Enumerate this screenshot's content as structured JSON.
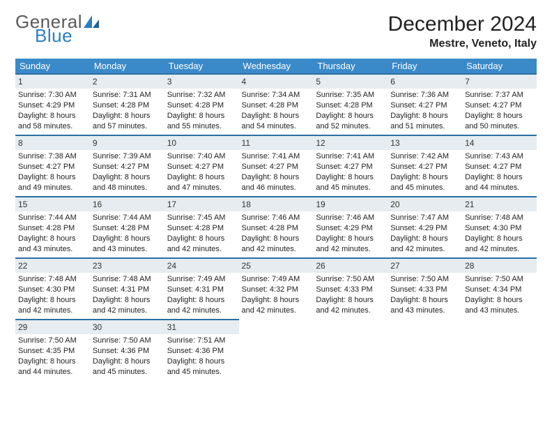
{
  "logo": {
    "text1": "General",
    "text2": "Blue",
    "sail_color": "#2b7fc2",
    "text1_color": "#5a5a5a"
  },
  "title": "December 2024",
  "location": "Mestre, Veneto, Italy",
  "header_bg": "#3a8ac9",
  "header_fg": "#ffffff",
  "daybar_bg": "#e6ecef",
  "daybar_border": "#2b6fa3",
  "font_family": "Arial",
  "title_fontsize": 30,
  "location_fontsize": 16,
  "header_fontsize": 13,
  "body_fontsize": 11,
  "weekdays": [
    "Sunday",
    "Monday",
    "Tuesday",
    "Wednesday",
    "Thursday",
    "Friday",
    "Saturday"
  ],
  "weeks": [
    [
      {
        "n": "1",
        "sr": "Sunrise: 7:30 AM",
        "ss": "Sunset: 4:29 PM",
        "d1": "Daylight: 8 hours",
        "d2": "and 58 minutes."
      },
      {
        "n": "2",
        "sr": "Sunrise: 7:31 AM",
        "ss": "Sunset: 4:28 PM",
        "d1": "Daylight: 8 hours",
        "d2": "and 57 minutes."
      },
      {
        "n": "3",
        "sr": "Sunrise: 7:32 AM",
        "ss": "Sunset: 4:28 PM",
        "d1": "Daylight: 8 hours",
        "d2": "and 55 minutes."
      },
      {
        "n": "4",
        "sr": "Sunrise: 7:34 AM",
        "ss": "Sunset: 4:28 PM",
        "d1": "Daylight: 8 hours",
        "d2": "and 54 minutes."
      },
      {
        "n": "5",
        "sr": "Sunrise: 7:35 AM",
        "ss": "Sunset: 4:28 PM",
        "d1": "Daylight: 8 hours",
        "d2": "and 52 minutes."
      },
      {
        "n": "6",
        "sr": "Sunrise: 7:36 AM",
        "ss": "Sunset: 4:27 PM",
        "d1": "Daylight: 8 hours",
        "d2": "and 51 minutes."
      },
      {
        "n": "7",
        "sr": "Sunrise: 7:37 AM",
        "ss": "Sunset: 4:27 PM",
        "d1": "Daylight: 8 hours",
        "d2": "and 50 minutes."
      }
    ],
    [
      {
        "n": "8",
        "sr": "Sunrise: 7:38 AM",
        "ss": "Sunset: 4:27 PM",
        "d1": "Daylight: 8 hours",
        "d2": "and 49 minutes."
      },
      {
        "n": "9",
        "sr": "Sunrise: 7:39 AM",
        "ss": "Sunset: 4:27 PM",
        "d1": "Daylight: 8 hours",
        "d2": "and 48 minutes."
      },
      {
        "n": "10",
        "sr": "Sunrise: 7:40 AM",
        "ss": "Sunset: 4:27 PM",
        "d1": "Daylight: 8 hours",
        "d2": "and 47 minutes."
      },
      {
        "n": "11",
        "sr": "Sunrise: 7:41 AM",
        "ss": "Sunset: 4:27 PM",
        "d1": "Daylight: 8 hours",
        "d2": "and 46 minutes."
      },
      {
        "n": "12",
        "sr": "Sunrise: 7:41 AM",
        "ss": "Sunset: 4:27 PM",
        "d1": "Daylight: 8 hours",
        "d2": "and 45 minutes."
      },
      {
        "n": "13",
        "sr": "Sunrise: 7:42 AM",
        "ss": "Sunset: 4:27 PM",
        "d1": "Daylight: 8 hours",
        "d2": "and 45 minutes."
      },
      {
        "n": "14",
        "sr": "Sunrise: 7:43 AM",
        "ss": "Sunset: 4:27 PM",
        "d1": "Daylight: 8 hours",
        "d2": "and 44 minutes."
      }
    ],
    [
      {
        "n": "15",
        "sr": "Sunrise: 7:44 AM",
        "ss": "Sunset: 4:28 PM",
        "d1": "Daylight: 8 hours",
        "d2": "and 43 minutes."
      },
      {
        "n": "16",
        "sr": "Sunrise: 7:44 AM",
        "ss": "Sunset: 4:28 PM",
        "d1": "Daylight: 8 hours",
        "d2": "and 43 minutes."
      },
      {
        "n": "17",
        "sr": "Sunrise: 7:45 AM",
        "ss": "Sunset: 4:28 PM",
        "d1": "Daylight: 8 hours",
        "d2": "and 42 minutes."
      },
      {
        "n": "18",
        "sr": "Sunrise: 7:46 AM",
        "ss": "Sunset: 4:28 PM",
        "d1": "Daylight: 8 hours",
        "d2": "and 42 minutes."
      },
      {
        "n": "19",
        "sr": "Sunrise: 7:46 AM",
        "ss": "Sunset: 4:29 PM",
        "d1": "Daylight: 8 hours",
        "d2": "and 42 minutes."
      },
      {
        "n": "20",
        "sr": "Sunrise: 7:47 AM",
        "ss": "Sunset: 4:29 PM",
        "d1": "Daylight: 8 hours",
        "d2": "and 42 minutes."
      },
      {
        "n": "21",
        "sr": "Sunrise: 7:48 AM",
        "ss": "Sunset: 4:30 PM",
        "d1": "Daylight: 8 hours",
        "d2": "and 42 minutes."
      }
    ],
    [
      {
        "n": "22",
        "sr": "Sunrise: 7:48 AM",
        "ss": "Sunset: 4:30 PM",
        "d1": "Daylight: 8 hours",
        "d2": "and 42 minutes."
      },
      {
        "n": "23",
        "sr": "Sunrise: 7:48 AM",
        "ss": "Sunset: 4:31 PM",
        "d1": "Daylight: 8 hours",
        "d2": "and 42 minutes."
      },
      {
        "n": "24",
        "sr": "Sunrise: 7:49 AM",
        "ss": "Sunset: 4:31 PM",
        "d1": "Daylight: 8 hours",
        "d2": "and 42 minutes."
      },
      {
        "n": "25",
        "sr": "Sunrise: 7:49 AM",
        "ss": "Sunset: 4:32 PM",
        "d1": "Daylight: 8 hours",
        "d2": "and 42 minutes."
      },
      {
        "n": "26",
        "sr": "Sunrise: 7:50 AM",
        "ss": "Sunset: 4:33 PM",
        "d1": "Daylight: 8 hours",
        "d2": "and 42 minutes."
      },
      {
        "n": "27",
        "sr": "Sunrise: 7:50 AM",
        "ss": "Sunset: 4:33 PM",
        "d1": "Daylight: 8 hours",
        "d2": "and 43 minutes."
      },
      {
        "n": "28",
        "sr": "Sunrise: 7:50 AM",
        "ss": "Sunset: 4:34 PM",
        "d1": "Daylight: 8 hours",
        "d2": "and 43 minutes."
      }
    ],
    [
      {
        "n": "29",
        "sr": "Sunrise: 7:50 AM",
        "ss": "Sunset: 4:35 PM",
        "d1": "Daylight: 8 hours",
        "d2": "and 44 minutes."
      },
      {
        "n": "30",
        "sr": "Sunrise: 7:50 AM",
        "ss": "Sunset: 4:36 PM",
        "d1": "Daylight: 8 hours",
        "d2": "and 45 minutes."
      },
      {
        "n": "31",
        "sr": "Sunrise: 7:51 AM",
        "ss": "Sunset: 4:36 PM",
        "d1": "Daylight: 8 hours",
        "d2": "and 45 minutes."
      },
      null,
      null,
      null,
      null
    ]
  ]
}
